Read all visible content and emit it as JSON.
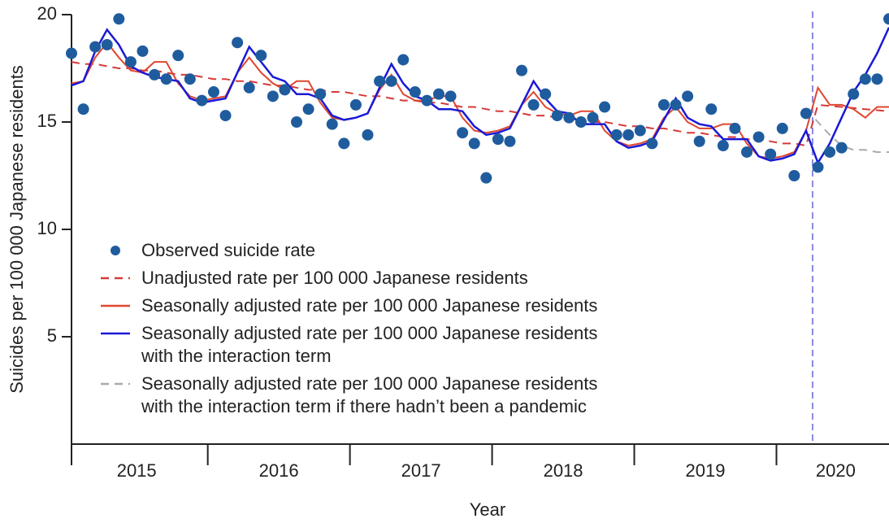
{
  "chart_data": {
    "type": "line",
    "x_label": "Year",
    "y_label": "Suicides per 100 000 Japanese residents",
    "categories": [
      null,
      null,
      null,
      null,
      null,
      null,
      "2015",
      null,
      null,
      null,
      null,
      null,
      null,
      null,
      null,
      null,
      null,
      null,
      "2016",
      null,
      null,
      null,
      null,
      null,
      null,
      null,
      null,
      null,
      null,
      null,
      "2017",
      null,
      null,
      null,
      null,
      null,
      null,
      null,
      null,
      null,
      null,
      null,
      "2018",
      null,
      null,
      null,
      null,
      null,
      null,
      null,
      null,
      null,
      null,
      null,
      "2019",
      null,
      null,
      null,
      null,
      null,
      null,
      null,
      null,
      null,
      null,
      "2020",
      null,
      null,
      null,
      null
    ],
    "ylim": [
      0,
      20
    ],
    "yticks": [
      5,
      10,
      15,
      20
    ],
    "series": [
      {
        "name": "Observed suicide rate",
        "color": "#1f5c9e",
        "style": "marker",
        "values": [
          18.2,
          15.6,
          18.5,
          18.6,
          19.8,
          17.8,
          18.3,
          17.2,
          17.0,
          18.1,
          17.0,
          16.0,
          16.4,
          15.3,
          18.7,
          16.6,
          18.1,
          16.2,
          16.5,
          15.0,
          15.6,
          16.3,
          14.9,
          14.0,
          15.8,
          14.4,
          16.9,
          16.9,
          17.9,
          16.4,
          16.0,
          16.3,
          16.2,
          14.5,
          14.0,
          12.4,
          14.2,
          14.1,
          17.4,
          15.8,
          16.3,
          15.3,
          15.2,
          15.0,
          15.2,
          15.7,
          14.4,
          14.4,
          14.6,
          14.0,
          15.8,
          15.8,
          16.2,
          14.1,
          15.6,
          13.9,
          14.7,
          13.6,
          14.3,
          13.5,
          14.7,
          12.5,
          15.4,
          12.9,
          13.6,
          13.8,
          16.3,
          17.0,
          17.0,
          19.8
        ]
      },
      {
        "name": "Unadjusted rate per 100 000 Japanese residents",
        "color": "#d63a3a",
        "style": "dashed",
        "values": [
          17.8,
          17.7,
          17.7,
          17.6,
          17.5,
          17.5,
          17.4,
          17.4,
          17.3,
          17.2,
          17.2,
          17.1,
          17.0,
          17.0,
          16.9,
          16.9,
          16.8,
          16.7,
          16.7,
          16.6,
          16.5,
          16.5,
          16.4,
          16.4,
          16.3,
          16.2,
          16.2,
          16.1,
          16.0,
          16.0,
          15.9,
          15.9,
          15.8,
          15.7,
          15.7,
          15.6,
          15.5,
          15.5,
          15.4,
          15.3,
          15.3,
          15.2,
          15.2,
          15.1,
          15.0,
          15.0,
          14.9,
          14.8,
          14.8,
          14.7,
          14.7,
          14.6,
          14.5,
          14.5,
          14.4,
          14.3,
          14.3,
          14.2,
          14.2,
          14.1,
          14.0,
          14.0,
          13.9,
          15.8,
          15.75,
          15.7,
          15.65,
          15.6,
          15.55,
          15.5
        ]
      },
      {
        "name": "Seasonally adjusted rate per 100 000 Japanese residents",
        "color": "#e0462f",
        "style": "solid",
        "values": [
          16.8,
          16.9,
          18.0,
          18.7,
          18.0,
          17.4,
          17.3,
          17.8,
          17.8,
          16.8,
          16.2,
          16.0,
          16.1,
          16.2,
          17.3,
          18.0,
          17.3,
          16.8,
          16.5,
          16.9,
          16.9,
          15.9,
          15.2,
          15.1,
          15.2,
          15.4,
          16.5,
          17.2,
          16.3,
          16.0,
          16.0,
          16.2,
          16.2,
          15.2,
          14.6,
          14.5,
          14.6,
          14.8,
          15.8,
          16.4,
          15.7,
          15.4,
          15.3,
          15.5,
          15.5,
          14.6,
          14.1,
          13.9,
          14.0,
          14.2,
          15.2,
          15.7,
          15.0,
          14.7,
          14.7,
          14.9,
          14.9,
          14.0,
          13.4,
          13.3,
          13.4,
          13.6,
          14.6,
          16.6,
          15.8,
          15.8,
          15.6,
          15.2,
          15.7,
          15.7
        ]
      },
      {
        "name": "Seasonally adjusted rate per 100 000 Japanese residents\nwith the interaction term",
        "color": "#1a1ad6",
        "style": "solid",
        "values": [
          16.7,
          16.9,
          18.3,
          19.3,
          18.6,
          17.6,
          17.3,
          17.1,
          17.0,
          16.9,
          16.1,
          15.9,
          16.0,
          16.1,
          17.3,
          18.5,
          17.8,
          17.1,
          16.9,
          16.3,
          16.3,
          16.1,
          15.3,
          15.1,
          15.2,
          15.4,
          16.6,
          17.7,
          16.8,
          16.2,
          16.0,
          15.6,
          15.6,
          15.5,
          14.8,
          14.4,
          14.5,
          14.7,
          15.8,
          16.9,
          16.1,
          15.5,
          15.4,
          14.9,
          14.9,
          14.9,
          14.1,
          13.8,
          13.9,
          14.1,
          15.1,
          16.1,
          15.2,
          14.9,
          14.8,
          14.2,
          14.2,
          14.2,
          13.4,
          13.2,
          13.3,
          13.5,
          14.6,
          13.1,
          14.0,
          15.2,
          16.4,
          17.2,
          18.2,
          19.4
        ]
      },
      {
        "name": "Seasonally adjusted rate per 100 000 Japanese residents\nwith the interaction term if there hadn’t been a pandemic",
        "color": "#aaaaaa",
        "style": "dashed",
        "values": [
          null,
          null,
          null,
          null,
          null,
          null,
          null,
          null,
          null,
          null,
          null,
          null,
          null,
          null,
          null,
          null,
          null,
          null,
          null,
          null,
          null,
          null,
          null,
          null,
          null,
          null,
          null,
          null,
          null,
          null,
          null,
          null,
          null,
          null,
          null,
          null,
          null,
          null,
          null,
          null,
          null,
          null,
          null,
          null,
          null,
          null,
          null,
          null,
          null,
          null,
          null,
          null,
          null,
          null,
          null,
          null,
          null,
          null,
          null,
          null,
          null,
          null,
          15.6,
          15.0,
          14.4,
          13.9,
          13.7,
          13.7,
          13.6,
          13.6
        ]
      }
    ]
  }
}
